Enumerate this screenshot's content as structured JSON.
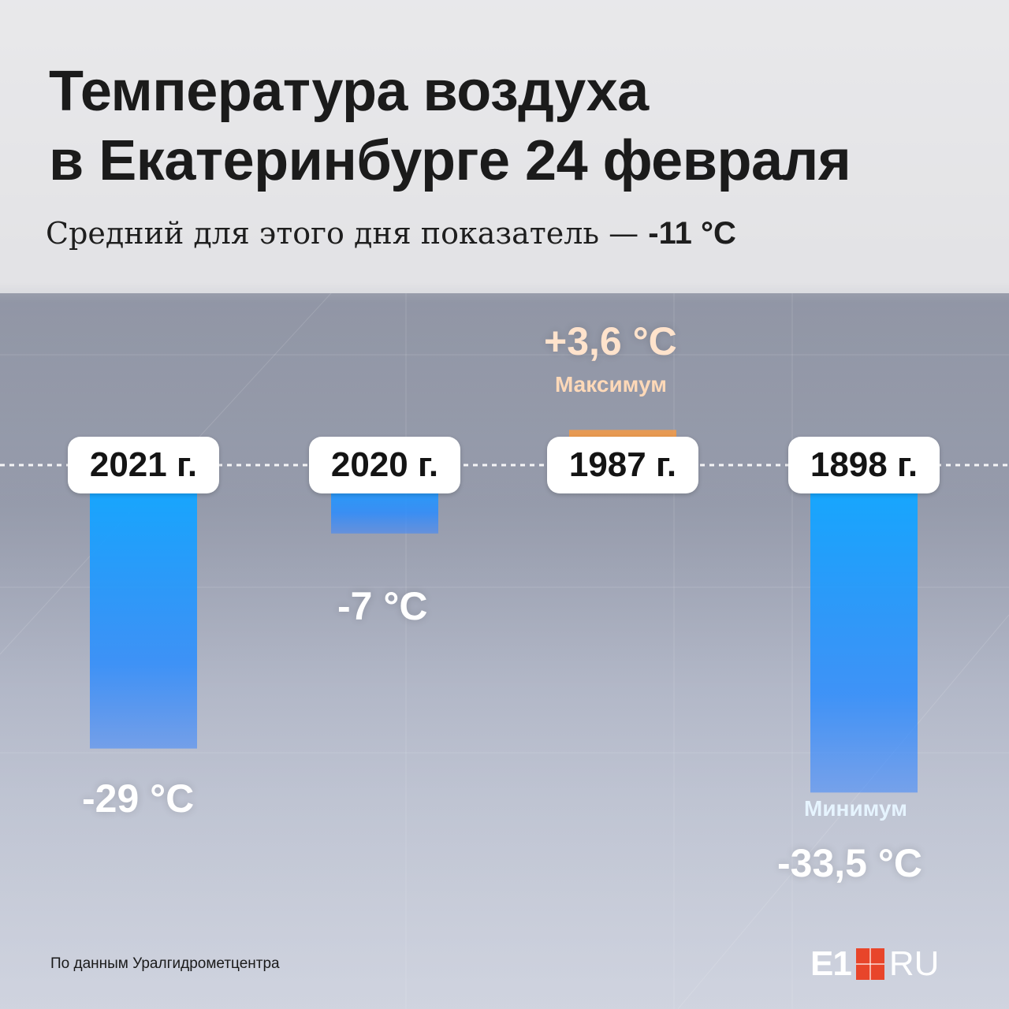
{
  "title_line1": "Температура воздуха",
  "title_line2": "в Екатеринбурге 24 февраля",
  "subtitle_prefix": "Средний для этого дня показатель — ",
  "subtitle_value": "-11 °C",
  "source": "По данным Уралгидрометцентра",
  "logo": {
    "e1": "E1",
    "ru": "RU"
  },
  "colors": {
    "cold": "#1e9bff",
    "warm": "#ff8a2a",
    "tag_warm": "#ffd9b8",
    "tag_cold": "#e6f4ff"
  },
  "chart_data": {
    "type": "bar",
    "title": "Температура воздуха в Екатеринбурге 24 февраля",
    "subtitle": "Средний для этого дня показатель — -11 °C",
    "unit": "°C",
    "categories": [
      "2021 г.",
      "2020 г.",
      "1987 г.",
      "1898 г."
    ],
    "values": [
      -29,
      -7,
      3.6,
      -33.5
    ],
    "value_labels": [
      "-29 °C",
      "-7 °C",
      "+3,6 °C",
      "-33,5 °C"
    ],
    "annotations": [
      {
        "category": "1987 г.",
        "text": "Максимум"
      },
      {
        "category": "1898 г.",
        "text": "Минимум"
      }
    ],
    "baseline": 0,
    "grid": false
  }
}
